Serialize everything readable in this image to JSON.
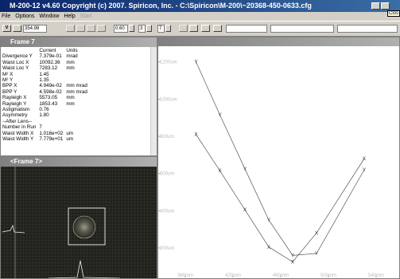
{
  "window": {
    "title": "M-200-12   v4.60   Copyright (c) 2007. Spiricon, Inc. - C:\\Spiricon\\M-200\\~20368-450-0633.cfg",
    "tooltip": "Clos"
  },
  "menu": [
    "File",
    "Options",
    "Window",
    "Help",
    "Start"
  ],
  "toolbar": {
    "button": "V",
    "position": "354.98",
    "step": "0.60",
    "from": "3",
    "to": "7"
  },
  "results": {
    "title": "Frame 7",
    "headers": [
      "Current",
      "Units"
    ],
    "rows": [
      [
        "Divergence Y",
        "7.379e-01",
        "mrad"
      ],
      [
        "Waist Loc X",
        "10092.36",
        "mm"
      ],
      [
        "Waist Loc Y",
        "7283.12",
        "mm"
      ],
      [
        "M² X",
        "1.45"
      ],
      [
        "M² Y",
        "1.35"
      ],
      [
        "BPP X",
        "4.949e-02",
        "mm mrad"
      ],
      [
        "BPP Y",
        "4.598e-02",
        "mm mrad"
      ],
      [
        "Rayleigh X",
        "5573.05",
        "mm"
      ],
      [
        "Rayleigh Y",
        "1853.43",
        "mm"
      ],
      [
        "Astigmatism",
        "0.76"
      ],
      [
        "Asymmetry",
        "1.80"
      ],
      [
        "--After Lens--"
      ],
      [
        "Number in Run",
        "7"
      ],
      [
        "Waist Width X",
        "1.016e+02",
        "um"
      ],
      [
        "Waist Width Y",
        "7.779e+01",
        "um"
      ]
    ]
  },
  "image": {
    "title": "<Frame 7>"
  },
  "chart_data": {
    "type": "line",
    "x": [
      389,
      409,
      430,
      450,
      470,
      490,
      530
    ],
    "series": [
      {
        "name": "Y",
        "color": "#555555",
        "values": [
          1200,
          915,
          625,
          350,
          160,
          170,
          620
        ]
      },
      {
        "name": "X",
        "color": "#555555",
        "values": [
          810,
          615,
          405,
          205,
          125,
          280,
          680
        ]
      }
    ],
    "xlim": [
      360,
      558
    ],
    "ylim": [
      50,
      1250
    ],
    "xticks": [
      {
        "value": 380,
        "label": "380mm"
      },
      {
        "value": 420,
        "label": "420mm"
      },
      {
        "value": 460,
        "label": "460mm"
      },
      {
        "value": 500,
        "label": "500mm"
      },
      {
        "value": 540,
        "label": "540mm"
      }
    ],
    "yticks": [
      {
        "value": 200,
        "label": "200um"
      },
      {
        "value": 400,
        "label": "400um"
      },
      {
        "value": 600,
        "label": "600um"
      },
      {
        "value": 800,
        "label": "800um"
      },
      {
        "value": 1000,
        "label": "1000um"
      },
      {
        "value": 1200,
        "label": "1200um"
      }
    ]
  }
}
